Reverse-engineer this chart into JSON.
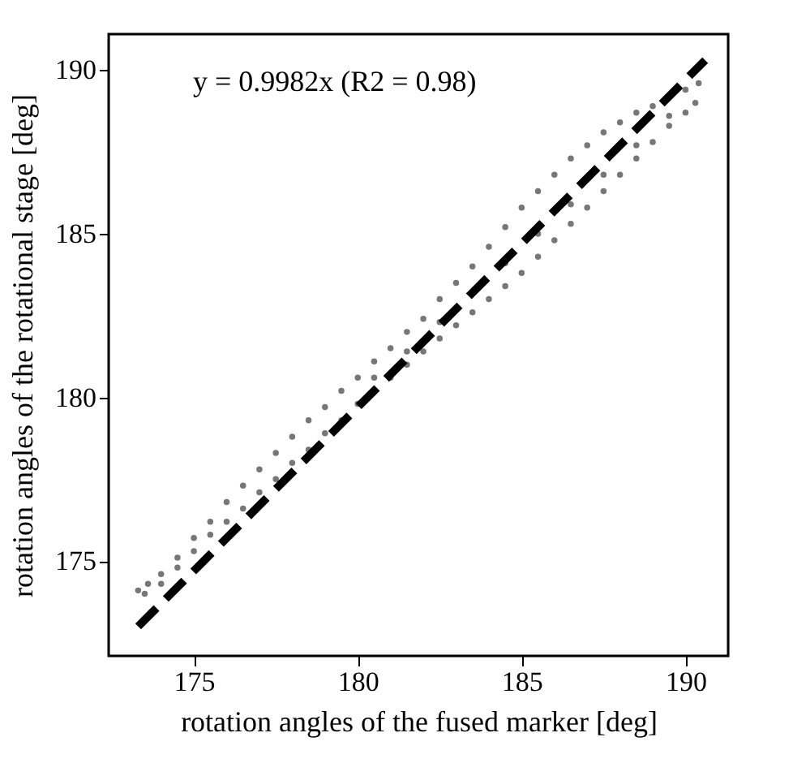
{
  "chart_data": {
    "type": "scatter",
    "xlabel": "rotation angles of the fused marker [deg]",
    "ylabel": "rotation angles of the rotational stage [deg]",
    "annotations": [
      "y = 0.9982x (R2 = 0.98)"
    ],
    "xlim": [
      172.4,
      191.3
    ],
    "ylim": [
      172.1,
      191.1
    ],
    "xticks": [
      175,
      180,
      185,
      190
    ],
    "yticks": [
      175,
      180,
      185,
      190
    ],
    "grid": false,
    "series": [
      {
        "type": "scatter",
        "color": "#777777",
        "marker": "circle",
        "x": [
          173.3,
          173.6,
          174.0,
          174.5,
          175.0,
          175.5,
          176.0,
          176.5,
          177.0,
          177.5,
          178.0,
          178.5,
          179.0,
          179.5,
          180.0,
          180.5,
          181.0,
          181.5,
          182.0,
          182.5,
          183.0,
          183.5,
          184.0,
          184.5,
          185.0,
          185.5,
          186.0,
          186.5,
          187.0,
          187.5,
          188.0,
          188.5,
          189.0,
          190.0,
          190.4,
          173.5,
          174.0,
          174.5,
          175.0,
          175.5,
          176.0,
          176.5,
          177.0,
          177.5,
          178.0,
          178.5,
          179.0,
          179.5,
          180.0,
          181.0,
          181.5,
          182.0,
          182.5,
          183.0,
          183.5,
          184.0,
          184.5,
          185.0,
          185.5,
          186.0,
          186.5,
          187.0,
          187.5,
          188.0,
          188.5,
          189.0,
          189.5,
          190.0,
          190.3,
          180.5,
          181.5,
          182.5,
          184.5,
          185.5,
          186.5,
          187.5,
          188.5,
          189.5
        ],
        "values": [
          174.1,
          174.3,
          174.6,
          175.1,
          175.7,
          176.2,
          176.8,
          177.3,
          177.8,
          178.3,
          178.8,
          179.3,
          179.7,
          180.2,
          180.6,
          181.1,
          181.5,
          182.0,
          182.4,
          183.0,
          183.5,
          184.0,
          184.6,
          185.2,
          185.8,
          186.3,
          186.8,
          187.3,
          187.7,
          188.1,
          188.4,
          188.7,
          188.9,
          189.4,
          189.6,
          174.0,
          174.3,
          174.8,
          175.3,
          175.8,
          176.2,
          176.6,
          177.1,
          177.5,
          178.0,
          178.4,
          178.9,
          179.3,
          179.8,
          180.6,
          181.0,
          181.4,
          181.8,
          182.2,
          182.6,
          183.0,
          183.4,
          183.8,
          184.3,
          184.8,
          185.3,
          185.8,
          186.3,
          186.8,
          187.3,
          187.8,
          188.3,
          188.7,
          189.0,
          180.6,
          181.4,
          182.3,
          184.1,
          185.0,
          185.9,
          186.8,
          187.7,
          188.6
        ]
      },
      {
        "type": "line",
        "color": "#000000",
        "line_style": "dashed",
        "x": [
          173.3,
          190.6
        ],
        "values": [
          173.0,
          190.3
        ]
      }
    ]
  }
}
